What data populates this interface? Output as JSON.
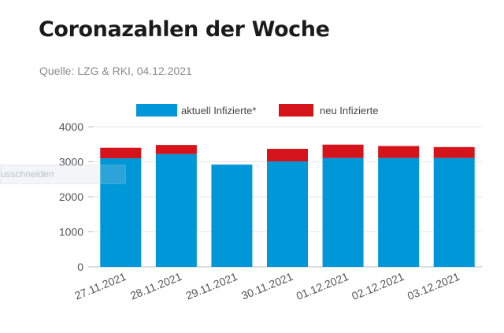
{
  "header": {
    "title": "Coronazahlen der Woche",
    "source": "Quelle: LZG & RKI, 04.12.2021"
  },
  "overlay": {
    "button_text": "usschneiden"
  },
  "colors": {
    "active": "#0097d8",
    "new": "#d4131b",
    "grid": "#e6e6e6",
    "axis": "#bdbdbd"
  },
  "chart_data": {
    "type": "bar",
    "stacked": true,
    "categories": [
      "27.11.2021",
      "28.11.2021",
      "29.11.2021",
      "30.11.2021",
      "01.12.2021",
      "02.12.2021",
      "03.12.2021"
    ],
    "series": [
      {
        "name": "aktuell Infizierte*",
        "values": [
          3100,
          3220,
          2920,
          3010,
          3110,
          3110,
          3110
        ]
      },
      {
        "name": "neu Infizierte",
        "values": [
          300,
          260,
          0,
          360,
          380,
          340,
          310
        ]
      }
    ],
    "ylim": [
      0,
      4000
    ],
    "yticks": [
      0,
      1000,
      2000,
      3000,
      4000
    ],
    "grid": true,
    "legend": "top"
  }
}
